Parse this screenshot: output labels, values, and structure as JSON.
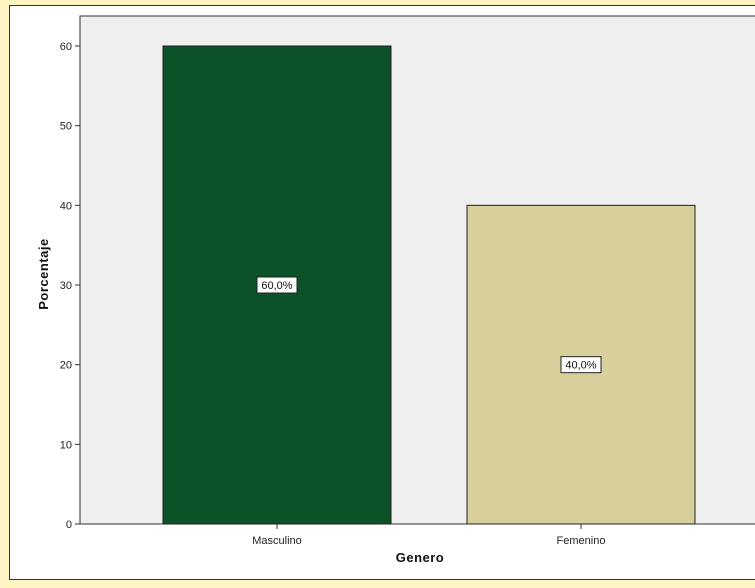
{
  "chart_data": {
    "type": "bar",
    "categories": [
      "Masculino",
      "Femenino"
    ],
    "values": [
      60,
      40
    ],
    "data_labels": [
      "60,0%",
      "40,0%"
    ],
    "bar_colors": [
      "#0b5228",
      "#d8d09c"
    ],
    "plot_background": "#efefef",
    "xlabel": "Genero",
    "ylabel": "Porcentaje",
    "ylim": [
      0,
      60
    ],
    "yticks": [
      0,
      10,
      20,
      30,
      40,
      50,
      60
    ],
    "grid": false,
    "legend": "none"
  }
}
